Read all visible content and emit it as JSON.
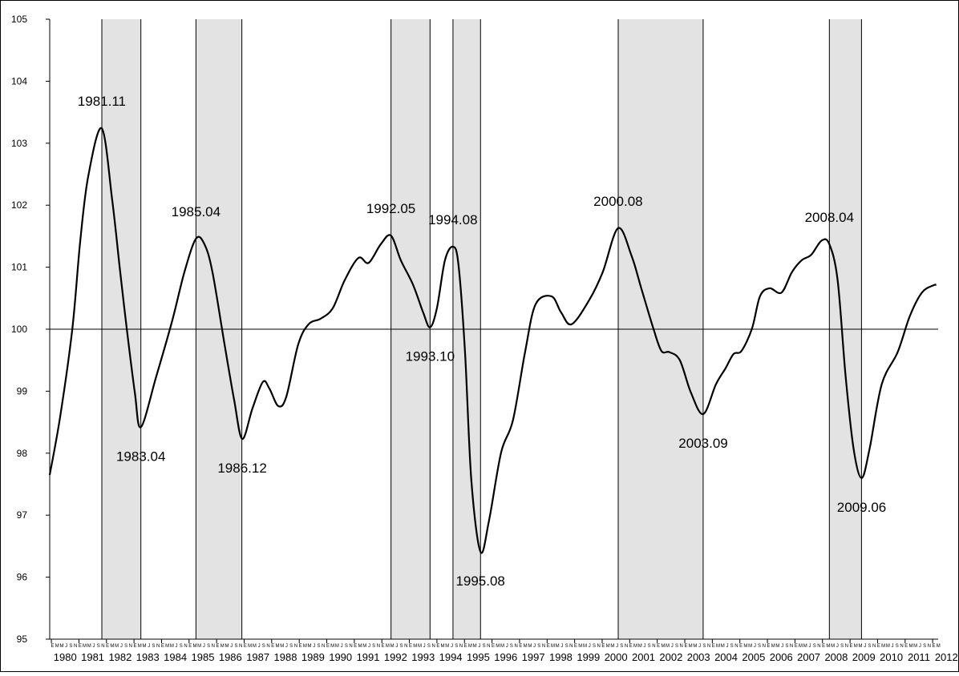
{
  "chart_data": {
    "type": "line",
    "x": [
      1979.94,
      1980.32,
      1980.76,
      1981.05,
      1981.34,
      1981.83,
      1982.21,
      1982.5,
      1982.74,
      1983.03,
      1983.25,
      1983.81,
      1984.39,
      1984.83,
      1985.25,
      1985.56,
      1985.85,
      1986.29,
      1986.64,
      1986.93,
      1987.3,
      1987.68,
      1987.92,
      1988.24,
      1988.53,
      1988.96,
      1989.34,
      1989.78,
      1990.22,
      1990.65,
      1991.15,
      1991.52,
      1991.96,
      1992.33,
      1992.69,
      1993.13,
      1993.5,
      1993.75,
      1994.0,
      1994.29,
      1994.58,
      1994.78,
      1995.02,
      1995.25,
      1995.58,
      1995.89,
      1996.33,
      1996.76,
      1997.2,
      1997.58,
      1998.16,
      1998.51,
      1998.89,
      1999.53,
      2000.02,
      2000.58,
      2001.07,
      2001.42,
      2001.86,
      2002.15,
      2002.44,
      2002.82,
      2003.22,
      2003.67,
      2004.13,
      2004.48,
      2004.77,
      2005.06,
      2005.44,
      2005.73,
      2006.08,
      2006.51,
      2006.89,
      2007.24,
      2007.59,
      2007.97,
      2008.25,
      2008.55,
      2008.84,
      2009.13,
      2009.42,
      2009.71,
      2010.15,
      2010.73,
      2011.17,
      2011.61,
      2012.04,
      2012.13
    ],
    "values": [
      97.65,
      98.59,
      100.0,
      101.43,
      102.47,
      103.24,
      102.08,
      100.92,
      100.0,
      98.98,
      98.42,
      99.24,
      100.14,
      100.92,
      101.46,
      101.37,
      100.92,
      99.75,
      98.85,
      98.23,
      98.72,
      99.15,
      99.04,
      98.76,
      98.91,
      99.75,
      100.08,
      100.17,
      100.34,
      100.79,
      101.15,
      101.07,
      101.37,
      101.51,
      101.11,
      100.72,
      100.27,
      100.03,
      100.34,
      101.11,
      101.33,
      101.05,
      99.63,
      97.56,
      96.41,
      96.91,
      98.01,
      98.53,
      99.63,
      100.4,
      100.53,
      100.27,
      100.08,
      100.47,
      100.92,
      101.63,
      101.18,
      100.66,
      100.01,
      99.65,
      99.63,
      99.5,
      98.98,
      98.63,
      99.11,
      99.37,
      99.6,
      99.65,
      100.01,
      100.53,
      100.66,
      100.59,
      100.92,
      101.11,
      101.2,
      101.43,
      101.37,
      100.79,
      99.24,
      98.07,
      97.6,
      98.07,
      99.11,
      99.63,
      100.21,
      100.59,
      100.71,
      100.71
    ],
    "color": "#000000",
    "xlim": [
      1979.94,
      2012.2
    ],
    "xticks": [
      1980,
      1981,
      1982,
      1983,
      1984,
      1985,
      1986,
      1987,
      1988,
      1989,
      1990,
      1991,
      1992,
      1993,
      1994,
      1995,
      1996,
      1997,
      1998,
      1999,
      2000,
      2001,
      2002,
      2003,
      2004,
      2005,
      2006,
      2007,
      2008,
      2009,
      2010,
      2011,
      2012
    ],
    "month_labels": [
      "E",
      "M",
      "M",
      "J",
      "S",
      "N"
    ],
    "ylim": [
      95,
      105
    ],
    "yticks": [
      95,
      96,
      97,
      98,
      99,
      100,
      101,
      102,
      103,
      104,
      105
    ],
    "reference_line": 100,
    "shaded_periods": [
      [
        1981.833,
        1983.25
      ],
      [
        1985.25,
        1986.917
      ],
      [
        1992.333,
        1993.75
      ],
      [
        1994.583,
        1995.583
      ],
      [
        2000.583,
        2003.667
      ],
      [
        2008.25,
        2009.417
      ]
    ],
    "shade_color": "#e3e3e3",
    "annotations": [
      {
        "text": "1981.11",
        "x": 1981.83,
        "y": 103.24,
        "position": "above"
      },
      {
        "text": "1983.04",
        "x": 1983.25,
        "y": 98.42,
        "position": "below"
      },
      {
        "text": "1985.04",
        "x": 1985.25,
        "y": 101.46,
        "position": "above"
      },
      {
        "text": "1986.12",
        "x": 1986.93,
        "y": 98.23,
        "position": "below"
      },
      {
        "text": "1992.05",
        "x": 1992.33,
        "y": 101.51,
        "position": "above"
      },
      {
        "text": "1993.10",
        "x": 1993.75,
        "y": 100.03,
        "position": "below"
      },
      {
        "text": "1994.08",
        "x": 1994.58,
        "y": 101.33,
        "position": "above"
      },
      {
        "text": "1995.08",
        "x": 1995.58,
        "y": 96.41,
        "position": "below"
      },
      {
        "text": "2000.08",
        "x": 2000.58,
        "y": 101.63,
        "position": "above"
      },
      {
        "text": "2003.09",
        "x": 2003.67,
        "y": 98.63,
        "position": "below"
      },
      {
        "text": "2008.04",
        "x": 2008.25,
        "y": 101.37,
        "position": "above"
      },
      {
        "text": "2009.06",
        "x": 2009.42,
        "y": 97.6,
        "position": "below"
      }
    ]
  }
}
